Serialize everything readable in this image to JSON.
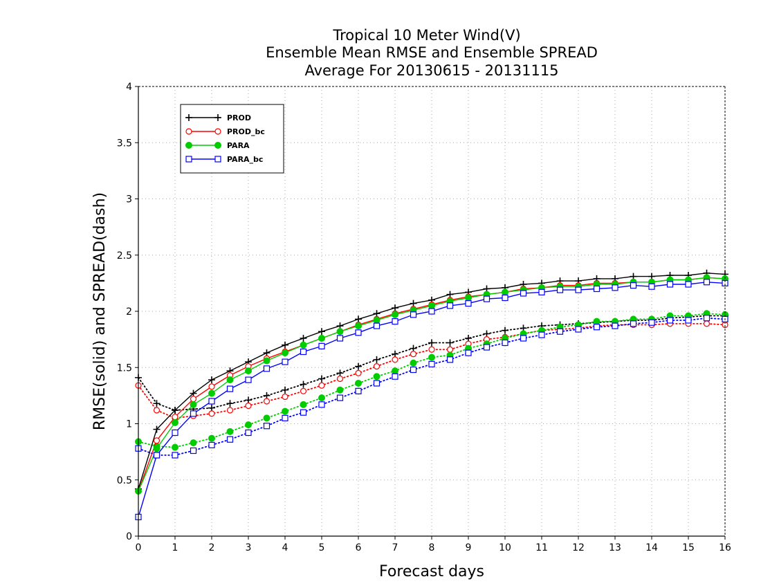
{
  "chart_data": {
    "type": "line",
    "title_lines": [
      "Tropical 10 Meter Wind(V)",
      "Ensemble Mean RMSE and Ensemble SPREAD",
      "Average For 20130615 - 20131115"
    ],
    "xlabel": "Forecast days",
    "ylabel": "RMSE(solid) and SPREAD(dash)",
    "xlim": [
      0,
      16
    ],
    "ylim": [
      0,
      4
    ],
    "xticks": [
      "0",
      "1",
      "2",
      "3",
      "4",
      "5",
      "6",
      "7",
      "8",
      "9",
      "10",
      "11",
      "12",
      "13",
      "14",
      "15",
      "16"
    ],
    "yticks": [
      "0",
      "0.5",
      "1",
      "1.5",
      "2",
      "2.5",
      "3",
      "3.5",
      "4"
    ],
    "grid": true,
    "legend_position": "top-left",
    "legend": [
      {
        "name": "PROD",
        "color": "#000000",
        "marker": "plus"
      },
      {
        "name": "PROD_bc",
        "color": "#ff0000",
        "marker": "open-circle"
      },
      {
        "name": "PARA",
        "color": "#00cc00",
        "marker": "filled-circle"
      },
      {
        "name": "PARA_bc",
        "color": "#0000ff",
        "marker": "open-square"
      }
    ],
    "x": [
      0,
      0.5,
      1,
      1.5,
      2,
      2.5,
      3,
      3.5,
      4,
      4.5,
      5,
      5.5,
      6,
      6.5,
      7,
      7.5,
      8,
      8.5,
      9,
      9.5,
      10,
      10.5,
      11,
      11.5,
      12,
      12.5,
      13,
      13.5,
      14,
      14.5,
      15,
      15.5,
      16
    ],
    "series": [
      {
        "name": "PROD",
        "style": "solid",
        "color": "#000000",
        "marker": "plus",
        "values": [
          0.42,
          0.95,
          1.12,
          1.27,
          1.39,
          1.47,
          1.55,
          1.63,
          1.7,
          1.76,
          1.82,
          1.87,
          1.93,
          1.98,
          2.03,
          2.07,
          2.1,
          2.15,
          2.17,
          2.2,
          2.21,
          2.24,
          2.25,
          2.27,
          2.27,
          2.29,
          2.29,
          2.31,
          2.31,
          2.32,
          2.32,
          2.34,
          2.33
        ]
      },
      {
        "name": "PROD_bc",
        "style": "solid",
        "color": "#ff0000",
        "marker": "open-circle",
        "values": [
          0.4,
          0.85,
          1.06,
          1.22,
          1.33,
          1.43,
          1.51,
          1.58,
          1.64,
          1.7,
          1.76,
          1.82,
          1.88,
          1.93,
          1.98,
          2.02,
          2.06,
          2.1,
          2.13,
          2.15,
          2.17,
          2.2,
          2.21,
          2.23,
          2.23,
          2.25,
          2.25,
          2.26,
          2.26,
          2.28,
          2.28,
          2.3,
          2.29
        ]
      },
      {
        "name": "PARA",
        "style": "solid",
        "color": "#00cc00",
        "marker": "filled-circle",
        "values": [
          0.4,
          0.78,
          1.01,
          1.17,
          1.27,
          1.39,
          1.47,
          1.56,
          1.63,
          1.7,
          1.76,
          1.82,
          1.87,
          1.92,
          1.97,
          2.01,
          2.05,
          2.09,
          2.12,
          2.15,
          2.17,
          2.19,
          2.21,
          2.22,
          2.22,
          2.24,
          2.24,
          2.26,
          2.26,
          2.28,
          2.28,
          2.3,
          2.29
        ]
      },
      {
        "name": "PARA_bc",
        "style": "solid",
        "color": "#0000ff",
        "marker": "open-square",
        "values": [
          0.17,
          0.72,
          0.92,
          1.09,
          1.2,
          1.31,
          1.39,
          1.49,
          1.55,
          1.64,
          1.69,
          1.76,
          1.81,
          1.87,
          1.91,
          1.97,
          2.0,
          2.05,
          2.07,
          2.11,
          2.12,
          2.16,
          2.17,
          2.19,
          2.19,
          2.2,
          2.21,
          2.23,
          2.22,
          2.24,
          2.24,
          2.26,
          2.25
        ]
      },
      {
        "name": "PROD",
        "style": "dotted",
        "color": "#000000",
        "marker": "plus",
        "values": [
          1.41,
          1.18,
          1.12,
          1.13,
          1.14,
          1.18,
          1.21,
          1.25,
          1.3,
          1.35,
          1.4,
          1.45,
          1.51,
          1.57,
          1.62,
          1.67,
          1.72,
          1.72,
          1.76,
          1.8,
          1.83,
          1.85,
          1.87,
          1.88,
          1.89,
          1.9,
          1.91,
          1.92,
          1.92,
          1.94,
          1.95,
          1.96,
          1.96
        ]
      },
      {
        "name": "PROD_bc",
        "style": "dotted",
        "color": "#ff0000",
        "marker": "open-circle",
        "values": [
          1.34,
          1.12,
          1.05,
          1.07,
          1.09,
          1.12,
          1.16,
          1.2,
          1.24,
          1.29,
          1.34,
          1.4,
          1.45,
          1.51,
          1.57,
          1.62,
          1.66,
          1.66,
          1.71,
          1.75,
          1.77,
          1.8,
          1.83,
          1.84,
          1.85,
          1.87,
          1.88,
          1.88,
          1.88,
          1.89,
          1.89,
          1.89,
          1.88
        ]
      },
      {
        "name": "PARA",
        "style": "dotted",
        "color": "#00cc00",
        "marker": "filled-circle",
        "values": [
          0.84,
          0.8,
          0.79,
          0.83,
          0.87,
          0.93,
          0.99,
          1.05,
          1.11,
          1.17,
          1.23,
          1.3,
          1.36,
          1.42,
          1.47,
          1.54,
          1.59,
          1.61,
          1.67,
          1.71,
          1.76,
          1.8,
          1.83,
          1.86,
          1.88,
          1.91,
          1.91,
          1.93,
          1.93,
          1.96,
          1.96,
          1.98,
          1.97
        ]
      },
      {
        "name": "PARA_bc",
        "style": "dotted",
        "color": "#0000ff",
        "marker": "open-square",
        "values": [
          0.78,
          0.72,
          0.72,
          0.76,
          0.81,
          0.86,
          0.92,
          0.98,
          1.05,
          1.1,
          1.17,
          1.23,
          1.29,
          1.36,
          1.42,
          1.48,
          1.53,
          1.57,
          1.63,
          1.68,
          1.72,
          1.76,
          1.79,
          1.82,
          1.84,
          1.86,
          1.87,
          1.89,
          1.9,
          1.92,
          1.92,
          1.94,
          1.93
        ]
      }
    ]
  }
}
